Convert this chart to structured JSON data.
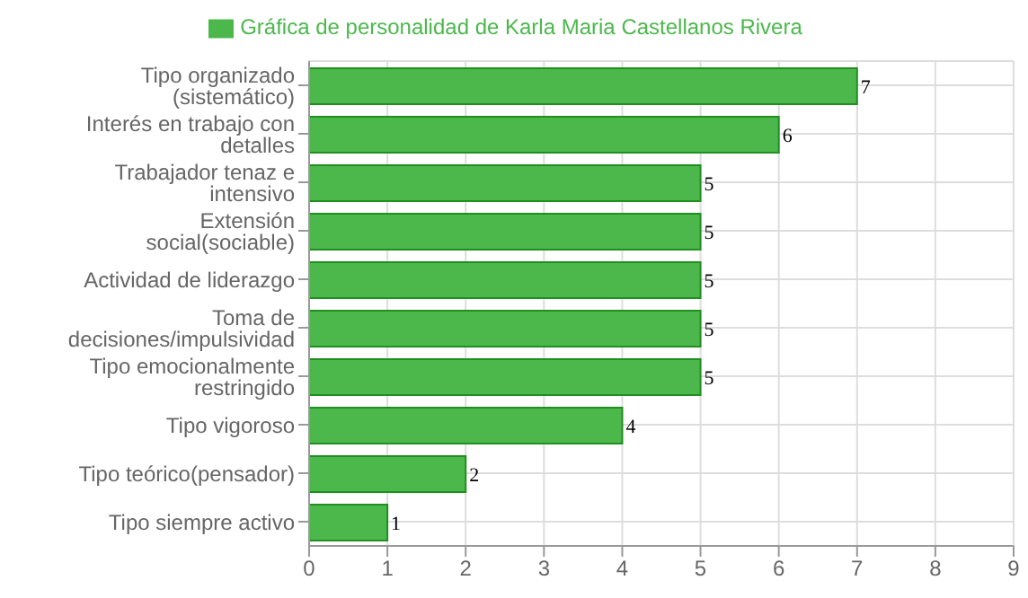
{
  "chart_data": {
    "type": "bar",
    "orientation": "horizontal",
    "categories": [
      "Tipo organizado (sistemático)",
      "Interés en trabajo con detalles",
      "Trabajador tenaz e intensivo",
      "Extensión social(sociable)",
      "Actividad de liderazgo",
      "Toma de decisiones/impulsividad",
      "Tipo emocionalmente restringido",
      "Tipo vigoroso",
      "Tipo teórico(pensador)",
      "Tipo siempre activo"
    ],
    "series": [
      {
        "name": "Gráfica de personalidad de Karla Maria Castellanos Rivera",
        "color": "#4cb84c",
        "values": [
          7,
          6,
          5,
          5,
          5,
          5,
          5,
          4,
          2,
          1
        ]
      }
    ],
    "xlim": [
      0,
      9
    ],
    "xticks": [
      0,
      1,
      2,
      3,
      4,
      5,
      6,
      7,
      8,
      9
    ],
    "grid": true,
    "legend": "top",
    "data_labels": true
  }
}
